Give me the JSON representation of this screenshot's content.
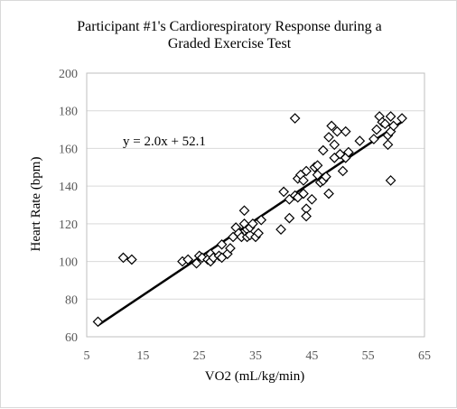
{
  "chart_data": {
    "type": "scatter",
    "title": "Participant #1's Cardiorespiratory Response during a Graded Exercise Test",
    "title_lines": [
      "Participant #1's Cardiorespiratory Response during a",
      "Graded Exercise Test"
    ],
    "xlabel": "VO2 (mL/kg/min)",
    "ylabel": "Heart Rate (bpm)",
    "xlim": [
      5,
      65
    ],
    "ylim": [
      60,
      200
    ],
    "x_ticks": [
      5,
      15,
      25,
      35,
      45,
      55,
      65
    ],
    "y_ticks": [
      60,
      80,
      100,
      120,
      140,
      160,
      180,
      200
    ],
    "grid": "horizontal",
    "legend": "none",
    "marker": "diamond",
    "trendline": {
      "slope": 2.0,
      "intercept": 52.1,
      "x_range": [
        7,
        61
      ],
      "label": "y = 2.0x + 52.1"
    },
    "points": [
      [
        7,
        68
      ],
      [
        11.5,
        102
      ],
      [
        13,
        101
      ],
      [
        22,
        100
      ],
      [
        23,
        101
      ],
      [
        24.5,
        99
      ],
      [
        25,
        103
      ],
      [
        25.5,
        102
      ],
      [
        26.5,
        101
      ],
      [
        27,
        100
      ],
      [
        27,
        104
      ],
      [
        27.5,
        102
      ],
      [
        28.5,
        103
      ],
      [
        29,
        102
      ],
      [
        29,
        109
      ],
      [
        30,
        104
      ],
      [
        30.5,
        107
      ],
      [
        31,
        113
      ],
      [
        31.5,
        118
      ],
      [
        32,
        115
      ],
      [
        32.5,
        113
      ],
      [
        33,
        120
      ],
      [
        33,
        127
      ],
      [
        33.5,
        117
      ],
      [
        33.5,
        113
      ],
      [
        34,
        114
      ],
      [
        34,
        118
      ],
      [
        34.5,
        120
      ],
      [
        35,
        113
      ],
      [
        35.5,
        115
      ],
      [
        36,
        122
      ],
      [
        39.5,
        117
      ],
      [
        40,
        137
      ],
      [
        41,
        123
      ],
      [
        41,
        133
      ],
      [
        42,
        135
      ],
      [
        42,
        176
      ],
      [
        42.5,
        134
      ],
      [
        42.5,
        144
      ],
      [
        43,
        146
      ],
      [
        43.5,
        136
      ],
      [
        43.5,
        143
      ],
      [
        44,
        128
      ],
      [
        44,
        124
      ],
      [
        44,
        148
      ],
      [
        45,
        133
      ],
      [
        45.5,
        150
      ],
      [
        46,
        146
      ],
      [
        46,
        151
      ],
      [
        46.5,
        142
      ],
      [
        47,
        159
      ],
      [
        47,
        143
      ],
      [
        47.5,
        145
      ],
      [
        48,
        136
      ],
      [
        48,
        166
      ],
      [
        48.5,
        172
      ],
      [
        49,
        162
      ],
      [
        49,
        155
      ],
      [
        49.5,
        169
      ],
      [
        50,
        157
      ],
      [
        50.5,
        148
      ],
      [
        51,
        155
      ],
      [
        51,
        169
      ],
      [
        51.5,
        158
      ],
      [
        53.5,
        164
      ],
      [
        56,
        165
      ],
      [
        56.5,
        170
      ],
      [
        57,
        177
      ],
      [
        57.5,
        174
      ],
      [
        58,
        173
      ],
      [
        58.5,
        167
      ],
      [
        58.5,
        162
      ],
      [
        59,
        143
      ],
      [
        59,
        169
      ],
      [
        59,
        177
      ],
      [
        59.5,
        172
      ],
      [
        61,
        176
      ]
    ]
  }
}
